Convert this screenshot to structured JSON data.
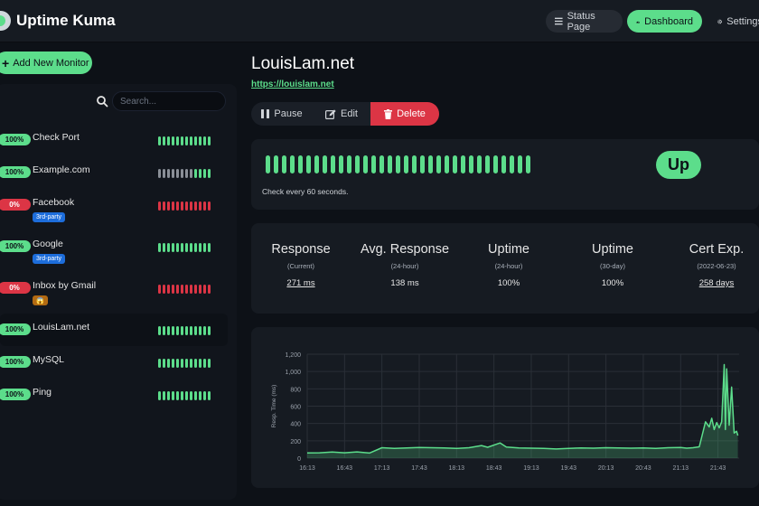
{
  "header": {
    "brand": "Uptime Kuma",
    "nav": {
      "status_page": "Status Page",
      "dashboard": "Dashboard",
      "settings": "Settings"
    }
  },
  "sidebar": {
    "add_button": "Add New Monitor",
    "search_placeholder": "Search...",
    "monitors": [
      {
        "name": "Check Port",
        "uptime": "100%",
        "status": "up",
        "beats": [
          "up",
          "up",
          "up",
          "up",
          "up",
          "up",
          "up",
          "up",
          "up",
          "up",
          "up",
          "up"
        ]
      },
      {
        "name": "Example.com",
        "uptime": "100%",
        "status": "up",
        "beats": [
          "gray",
          "gray",
          "gray",
          "gray",
          "gray",
          "gray",
          "gray",
          "gray",
          "up",
          "up",
          "up",
          "up"
        ]
      },
      {
        "name": "Facebook",
        "uptime": "0%",
        "status": "down",
        "tag": "3rd-party",
        "tag_color": "#1d6ddb",
        "beats": [
          "down",
          "down",
          "down",
          "down",
          "down",
          "down",
          "down",
          "down",
          "down",
          "down",
          "down",
          "down"
        ]
      },
      {
        "name": "Google",
        "uptime": "100%",
        "status": "up",
        "tag": "3rd-party",
        "tag_color": "#1d6ddb",
        "beats": [
          "up",
          "up",
          "up",
          "up",
          "up",
          "up",
          "up",
          "up",
          "up",
          "up",
          "up",
          "up"
        ]
      },
      {
        "name": "Inbox by Gmail",
        "uptime": "0%",
        "status": "down",
        "tag": "😱",
        "tag_color": "#b26a12",
        "beats": [
          "down",
          "down",
          "down",
          "down",
          "down",
          "down",
          "down",
          "down",
          "down",
          "down",
          "down",
          "down"
        ]
      },
      {
        "name": "LouisLam.net",
        "uptime": "100%",
        "status": "up",
        "active": true,
        "beats": [
          "up",
          "up",
          "up",
          "up",
          "up",
          "up",
          "up",
          "up",
          "up",
          "up",
          "up",
          "up"
        ]
      },
      {
        "name": "MySQL",
        "uptime": "100%",
        "status": "up",
        "beats": [
          "up",
          "up",
          "up",
          "up",
          "up",
          "up",
          "up",
          "up",
          "up",
          "up",
          "up",
          "up"
        ]
      },
      {
        "name": "Ping",
        "uptime": "100%",
        "status": "up",
        "beats": [
          "up",
          "up",
          "up",
          "up",
          "up",
          "up",
          "up",
          "up",
          "up",
          "up",
          "up",
          "up"
        ]
      }
    ]
  },
  "detail": {
    "title": "LouisLam.net",
    "url": "https://louislam.net",
    "actions": {
      "pause": "Pause",
      "edit": "Edit",
      "delete": "Delete"
    },
    "status_badge": "Up",
    "check_interval": "Check every 60 seconds.",
    "heartbeat_count": 33,
    "stats": [
      {
        "label": "Response",
        "sub": "(Current)",
        "value": "271 ms",
        "link": true
      },
      {
        "label": "Avg. Response",
        "sub": "(24-hour)",
        "value": "138 ms",
        "link": false
      },
      {
        "label": "Uptime",
        "sub": "(24-hour)",
        "value": "100%",
        "link": false
      },
      {
        "label": "Uptime",
        "sub": "(30-day)",
        "value": "100%",
        "link": false
      },
      {
        "label": "Cert Exp.",
        "sub": "(2022-06-23)",
        "value": "258 days",
        "link": true
      }
    ]
  },
  "colors": {
    "up": "#5cdd8b",
    "down": "#dc3545",
    "gray": "#8a8f97",
    "background": "#0d1117",
    "card": "#161b22"
  },
  "chart_data": {
    "type": "area",
    "ylabel": "Resp. Time (ms)",
    "ylim": [
      0,
      1200
    ],
    "yticks": [
      "0",
      "200",
      "400",
      "600",
      "800",
      "1,000",
      "1,200"
    ],
    "xticks": [
      "16:13",
      "16:43",
      "17:13",
      "17:43",
      "18:13",
      "18:43",
      "19:13",
      "19:43",
      "20:13",
      "20:43",
      "21:13",
      "21:43"
    ],
    "series": [
      {
        "points": [
          [
            "16:13",
            60
          ],
          [
            "16:23",
            62
          ],
          [
            "16:33",
            70
          ],
          [
            "16:43",
            62
          ],
          [
            "16:53",
            72
          ],
          [
            "17:03",
            58
          ],
          [
            "17:13",
            120
          ],
          [
            "17:23",
            112
          ],
          [
            "17:33",
            118
          ],
          [
            "17:43",
            122
          ],
          [
            "17:53",
            120
          ],
          [
            "18:03",
            118
          ],
          [
            "18:13",
            112
          ],
          [
            "18:23",
            120
          ],
          [
            "18:33",
            145
          ],
          [
            "18:38",
            125
          ],
          [
            "18:48",
            175
          ],
          [
            "18:53",
            128
          ],
          [
            "19:03",
            118
          ],
          [
            "19:13",
            115
          ],
          [
            "19:23",
            112
          ],
          [
            "19:33",
            105
          ],
          [
            "19:43",
            112
          ],
          [
            "19:53",
            118
          ],
          [
            "20:03",
            115
          ],
          [
            "20:13",
            120
          ],
          [
            "20:23",
            118
          ],
          [
            "20:33",
            115
          ],
          [
            "20:43",
            118
          ],
          [
            "20:53",
            112
          ],
          [
            "21:03",
            120
          ],
          [
            "21:13",
            122
          ],
          [
            "21:18",
            115
          ],
          [
            "21:23",
            120
          ],
          [
            "21:28",
            130
          ],
          [
            "21:33",
            420
          ],
          [
            "21:36",
            360
          ],
          [
            "21:38",
            460
          ],
          [
            "21:40",
            330
          ],
          [
            "21:42",
            410
          ],
          [
            "21:44",
            350
          ],
          [
            "21:46",
            420
          ],
          [
            "21:48",
            1080
          ],
          [
            "21:49",
            330
          ],
          [
            "21:50",
            1030
          ],
          [
            "21:52",
            380
          ],
          [
            "21:54",
            820
          ],
          [
            "21:56",
            290
          ],
          [
            "21:58",
            310
          ],
          [
            "21:59",
            260
          ]
        ]
      }
    ]
  }
}
